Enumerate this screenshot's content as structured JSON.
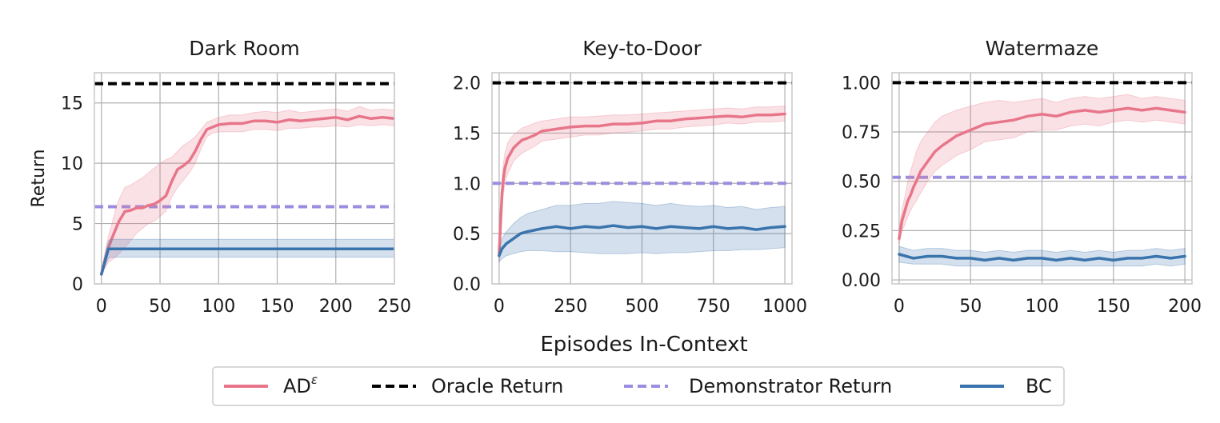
{
  "figure": {
    "shared_xlabel": "Episodes In-Context",
    "shared_ylabel": "Return"
  },
  "legend": {
    "items": [
      {
        "label": "AD",
        "superscript": "ε",
        "color": "#e8768a",
        "style": "solid"
      },
      {
        "label": "Oracle Return",
        "color": "#000000",
        "style": "dashed"
      },
      {
        "label": "Demonstrator Return",
        "color": "#9b8ee0",
        "style": "dashed"
      },
      {
        "label": "BC",
        "color": "#3a74ad",
        "style": "solid"
      }
    ]
  },
  "chart_data": [
    {
      "type": "line",
      "title": "Dark Room",
      "xlabel": "",
      "ylabel": "Return",
      "xlim": [
        -6,
        250
      ],
      "ylim": [
        0,
        17.5
      ],
      "xticks": [
        0,
        50,
        100,
        150,
        200,
        250
      ],
      "xtick_labels": [
        "0",
        "50",
        "100",
        "150",
        "200",
        "250"
      ],
      "yticks": [
        0,
        5,
        10,
        15
      ],
      "ytick_labels": [
        "0",
        "5",
        "10",
        "15"
      ],
      "grid": true,
      "reference_lines": [
        {
          "series": "Oracle Return",
          "y": 16.6
        },
        {
          "series": "Demonstrator Return",
          "y": 6.4
        }
      ],
      "series": [
        {
          "name": "AD",
          "x": [
            0,
            3,
            6,
            9,
            12,
            15,
            20,
            25,
            30,
            35,
            40,
            45,
            50,
            55,
            60,
            65,
            70,
            75,
            80,
            85,
            90,
            95,
            100,
            110,
            120,
            130,
            140,
            150,
            160,
            170,
            180,
            190,
            200,
            210,
            220,
            230,
            240,
            250
          ],
          "y": [
            0.8,
            2.0,
            3.0,
            3.8,
            4.5,
            5.2,
            6.0,
            6.1,
            6.3,
            6.3,
            6.5,
            6.6,
            6.9,
            7.3,
            8.5,
            9.5,
            9.8,
            10.2,
            11.0,
            12.0,
            12.8,
            13.0,
            13.2,
            13.3,
            13.3,
            13.5,
            13.5,
            13.4,
            13.6,
            13.5,
            13.6,
            13.7,
            13.8,
            13.6,
            13.9,
            13.7,
            13.8,
            13.7
          ],
          "lower": [
            0.7,
            1.3,
            1.8,
            2.0,
            2.2,
            2.5,
            3.0,
            3.6,
            4.2,
            4.6,
            5.0,
            5.2,
            5.6,
            6.0,
            7.2,
            8.0,
            8.6,
            9.2,
            10.0,
            11.2,
            12.2,
            12.5,
            12.6,
            12.6,
            12.6,
            12.8,
            12.8,
            12.7,
            12.9,
            12.9,
            13.0,
            13.0,
            13.1,
            13.0,
            13.2,
            13.1,
            13.2,
            13.1
          ],
          "upper": [
            0.9,
            2.6,
            4.0,
            5.0,
            6.2,
            7.0,
            8.0,
            8.2,
            8.5,
            8.8,
            9.2,
            9.6,
            10.0,
            10.3,
            10.5,
            11.0,
            11.5,
            11.8,
            12.2,
            12.8,
            13.4,
            13.6,
            13.8,
            14.0,
            14.0,
            14.2,
            14.3,
            14.2,
            14.4,
            14.2,
            14.3,
            14.4,
            14.5,
            14.3,
            14.7,
            14.4,
            14.5,
            14.4
          ]
        },
        {
          "name": "BC",
          "x": [
            0,
            2,
            4,
            6,
            8,
            10,
            20,
            50,
            100,
            150,
            200,
            250
          ],
          "y": [
            0.8,
            1.5,
            2.2,
            2.9,
            2.9,
            2.9,
            2.9,
            2.9,
            2.9,
            2.9,
            2.9,
            2.9
          ],
          "lower": [
            0.7,
            1.2,
            1.7,
            2.1,
            2.2,
            2.2,
            2.2,
            2.2,
            2.2,
            2.2,
            2.2,
            2.2
          ],
          "upper": [
            0.9,
            1.8,
            2.8,
            3.6,
            3.7,
            3.7,
            3.7,
            3.7,
            3.7,
            3.7,
            3.7,
            3.7
          ]
        }
      ]
    },
    {
      "type": "line",
      "title": "Key-to-Door",
      "xlabel": "",
      "ylabel": "",
      "xlim": [
        -25,
        1025
      ],
      "ylim": [
        0,
        2.1
      ],
      "xticks": [
        0,
        250,
        500,
        750,
        1000
      ],
      "xtick_labels": [
        "0",
        "250",
        "500",
        "750",
        "1000"
      ],
      "yticks": [
        0.0,
        0.5,
        1.0,
        1.5,
        2.0
      ],
      "ytick_labels": [
        "0.0",
        "0.5",
        "1.0",
        "1.5",
        "2.0"
      ],
      "grid": true,
      "reference_lines": [
        {
          "series": "Oracle Return",
          "y": 2.0
        },
        {
          "series": "Demonstrator Return",
          "y": 1.0
        }
      ],
      "series": [
        {
          "name": "AD",
          "x": [
            0,
            5,
            10,
            15,
            20,
            30,
            40,
            50,
            60,
            80,
            100,
            125,
            150,
            175,
            200,
            250,
            300,
            350,
            400,
            450,
            500,
            550,
            600,
            650,
            700,
            750,
            800,
            850,
            900,
            950,
            1000
          ],
          "y": [
            0.3,
            0.6,
            0.9,
            1.05,
            1.15,
            1.25,
            1.3,
            1.35,
            1.38,
            1.43,
            1.45,
            1.48,
            1.52,
            1.53,
            1.54,
            1.56,
            1.57,
            1.57,
            1.59,
            1.59,
            1.6,
            1.62,
            1.62,
            1.64,
            1.65,
            1.66,
            1.67,
            1.66,
            1.68,
            1.68,
            1.69
          ],
          "lower": [
            0.2,
            0.45,
            0.75,
            0.9,
            1.0,
            1.1,
            1.15,
            1.22,
            1.25,
            1.3,
            1.33,
            1.37,
            1.42,
            1.43,
            1.44,
            1.46,
            1.48,
            1.48,
            1.5,
            1.51,
            1.52,
            1.54,
            1.54,
            1.56,
            1.57,
            1.58,
            1.6,
            1.59,
            1.61,
            1.61,
            1.62
          ],
          "upper": [
            0.4,
            0.75,
            1.05,
            1.2,
            1.3,
            1.4,
            1.45,
            1.48,
            1.5,
            1.55,
            1.57,
            1.6,
            1.62,
            1.63,
            1.64,
            1.66,
            1.66,
            1.67,
            1.68,
            1.68,
            1.69,
            1.7,
            1.71,
            1.72,
            1.73,
            1.74,
            1.75,
            1.74,
            1.76,
            1.76,
            1.77
          ]
        },
        {
          "name": "BC",
          "x": [
            0,
            10,
            25,
            50,
            75,
            100,
            150,
            200,
            250,
            300,
            350,
            400,
            450,
            500,
            550,
            600,
            650,
            700,
            750,
            800,
            850,
            900,
            950,
            1000
          ],
          "y": [
            0.28,
            0.35,
            0.4,
            0.45,
            0.5,
            0.52,
            0.55,
            0.57,
            0.55,
            0.57,
            0.56,
            0.58,
            0.56,
            0.57,
            0.55,
            0.57,
            0.56,
            0.55,
            0.57,
            0.55,
            0.56,
            0.54,
            0.56,
            0.57
          ],
          "lower": [
            0.22,
            0.25,
            0.28,
            0.3,
            0.32,
            0.33,
            0.33,
            0.32,
            0.32,
            0.31,
            0.3,
            0.3,
            0.3,
            0.31,
            0.3,
            0.31,
            0.31,
            0.32,
            0.33,
            0.33,
            0.34,
            0.34,
            0.35,
            0.36
          ],
          "upper": [
            0.34,
            0.45,
            0.52,
            0.6,
            0.66,
            0.7,
            0.74,
            0.78,
            0.78,
            0.8,
            0.8,
            0.82,
            0.81,
            0.8,
            0.78,
            0.8,
            0.78,
            0.77,
            0.78,
            0.76,
            0.77,
            0.74,
            0.76,
            0.77
          ]
        }
      ]
    },
    {
      "type": "line",
      "title": "Watermaze",
      "xlabel": "",
      "ylabel": "",
      "xlim": [
        -5,
        205
      ],
      "ylim": [
        -0.02,
        1.05
      ],
      "xticks": [
        0,
        50,
        100,
        150,
        200
      ],
      "xtick_labels": [
        "0",
        "50",
        "100",
        "150",
        "200"
      ],
      "yticks": [
        0.0,
        0.25,
        0.5,
        0.75,
        1.0
      ],
      "ytick_labels": [
        "0.00",
        "0.25",
        "0.50",
        "0.75",
        "1.00"
      ],
      "grid": true,
      "reference_lines": [
        {
          "series": "Oracle Return",
          "y": 1.0
        },
        {
          "series": "Demonstrator Return",
          "y": 0.52
        }
      ],
      "series": [
        {
          "name": "AD",
          "x": [
            0,
            2,
            4,
            6,
            8,
            10,
            12,
            15,
            20,
            25,
            30,
            40,
            50,
            60,
            70,
            80,
            90,
            100,
            110,
            120,
            130,
            140,
            150,
            160,
            170,
            180,
            190,
            200
          ],
          "y": [
            0.21,
            0.3,
            0.35,
            0.4,
            0.43,
            0.47,
            0.5,
            0.55,
            0.6,
            0.65,
            0.68,
            0.73,
            0.76,
            0.79,
            0.8,
            0.81,
            0.83,
            0.84,
            0.83,
            0.85,
            0.86,
            0.85,
            0.86,
            0.87,
            0.86,
            0.87,
            0.86,
            0.85
          ],
          "lower": [
            0.18,
            0.25,
            0.28,
            0.32,
            0.35,
            0.38,
            0.4,
            0.44,
            0.5,
            0.55,
            0.58,
            0.63,
            0.66,
            0.7,
            0.71,
            0.72,
            0.75,
            0.76,
            0.76,
            0.78,
            0.79,
            0.78,
            0.8,
            0.81,
            0.8,
            0.81,
            0.8,
            0.79
          ],
          "upper": [
            0.25,
            0.36,
            0.42,
            0.5,
            0.55,
            0.6,
            0.65,
            0.7,
            0.75,
            0.8,
            0.83,
            0.86,
            0.88,
            0.9,
            0.91,
            0.9,
            0.91,
            0.92,
            0.9,
            0.92,
            0.93,
            0.92,
            0.93,
            0.94,
            0.92,
            0.93,
            0.92,
            0.91
          ]
        },
        {
          "name": "BC",
          "x": [
            0,
            10,
            20,
            30,
            40,
            50,
            60,
            70,
            80,
            90,
            100,
            110,
            120,
            130,
            140,
            150,
            160,
            170,
            180,
            190,
            200
          ],
          "y": [
            0.13,
            0.11,
            0.12,
            0.12,
            0.11,
            0.11,
            0.1,
            0.11,
            0.1,
            0.11,
            0.11,
            0.1,
            0.11,
            0.1,
            0.11,
            0.1,
            0.11,
            0.11,
            0.12,
            0.11,
            0.12
          ],
          "lower": [
            0.09,
            0.08,
            0.08,
            0.08,
            0.07,
            0.07,
            0.07,
            0.07,
            0.07,
            0.07,
            0.07,
            0.07,
            0.07,
            0.07,
            0.07,
            0.07,
            0.07,
            0.07,
            0.08,
            0.07,
            0.08
          ],
          "upper": [
            0.17,
            0.15,
            0.16,
            0.16,
            0.15,
            0.15,
            0.14,
            0.15,
            0.14,
            0.15,
            0.15,
            0.14,
            0.15,
            0.14,
            0.15,
            0.14,
            0.15,
            0.15,
            0.16,
            0.15,
            0.16
          ]
        }
      ]
    }
  ]
}
